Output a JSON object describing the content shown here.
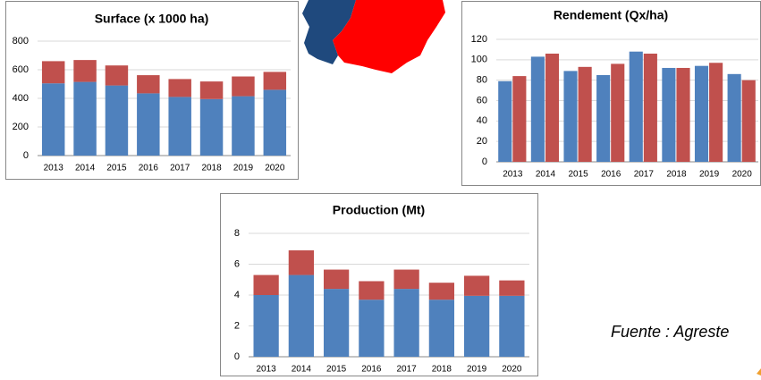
{
  "chart_data": [
    {
      "type": "stacked_bar",
      "title": "Surface (x 1000 ha)",
      "categories": [
        "2013",
        "2014",
        "2015",
        "2016",
        "2017",
        "2018",
        "2019",
        "2020"
      ],
      "series": [
        {
          "color": "#4f81bd",
          "values": [
            505,
            515,
            490,
            435,
            410,
            395,
            415,
            460
          ]
        },
        {
          "color": "#c0504d",
          "values": [
            155,
            153,
            140,
            127,
            125,
            123,
            138,
            125
          ]
        }
      ],
      "ylim": [
        0,
        800
      ],
      "yticks": [
        0,
        200,
        400,
        600,
        800
      ],
      "grid": true
    },
    {
      "type": "bar",
      "title": "Rendement (Qx/ha)",
      "categories": [
        "2013",
        "2014",
        "2015",
        "2016",
        "2017",
        "2018",
        "2019",
        "2020"
      ],
      "series": [
        {
          "color": "#4f81bd",
          "values": [
            79,
            103,
            89,
            85,
            108,
            92,
            94,
            86
          ]
        },
        {
          "color": "#c0504d",
          "values": [
            84,
            106,
            93,
            96,
            106,
            92,
            97,
            80
          ]
        }
      ],
      "ylim": [
        0,
        120
      ],
      "yticks": [
        0,
        20,
        40,
        60,
        80,
        100,
        120
      ],
      "grid": true
    },
    {
      "type": "stacked_bar",
      "title": "Production (Mt)",
      "categories": [
        "2013",
        "2014",
        "2015",
        "2016",
        "2017",
        "2018",
        "2019",
        "2020"
      ],
      "series": [
        {
          "color": "#4f81bd",
          "values": [
            4.0,
            5.3,
            4.4,
            3.7,
            4.4,
            3.7,
            3.95,
            3.95
          ]
        },
        {
          "color": "#c0504d",
          "values": [
            1.3,
            1.6,
            1.25,
            1.2,
            1.25,
            1.1,
            1.3,
            1.0
          ]
        }
      ],
      "ylim": [
        0,
        8
      ],
      "yticks": [
        0,
        2,
        4,
        6,
        8
      ],
      "grid": true
    }
  ],
  "source": "Fuente : Agreste"
}
